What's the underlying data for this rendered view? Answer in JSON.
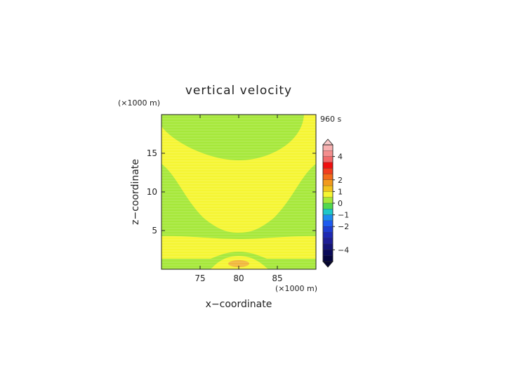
{
  "chart_data": {
    "type": "heatmap",
    "title": "vertical velocity",
    "time_label": "960 s",
    "xlabel": "x−coordinate",
    "ylabel": "z−coordinate",
    "x_unit": "(×1000 m)",
    "y_unit": "(×1000 m)",
    "xlim": [
      70,
      90
    ],
    "ylim": [
      0,
      20
    ],
    "x_ticks": [
      75,
      80,
      85
    ],
    "y_ticks": [
      5,
      10,
      15
    ],
    "x_tick_labels": [
      "75",
      "80",
      "85"
    ],
    "y_tick_labels": [
      "5",
      "10",
      "15"
    ],
    "regions": [
      {
        "level": "0 to 0.5",
        "color": "#f5f532",
        "description": "background (yellow)"
      },
      {
        "level": "-0.5 to 0",
        "color": "#a6e83a",
        "description": "upper bowl, flanks, low band (green)"
      },
      {
        "level": "0.5 to 1",
        "color": "#f0b83c",
        "description": "small cell near x=80, z=0.5"
      }
    ],
    "colorbar": {
      "tick_values": [
        4,
        2,
        1,
        0,
        -1,
        -2,
        -4
      ],
      "tick_labels": [
        "4",
        "2",
        "1",
        "0",
        "−1",
        "−2",
        "−4"
      ],
      "range": [
        -5,
        5
      ],
      "extend": "both",
      "colors_top_to_bottom": [
        "#f8b0b0",
        "#f38e8e",
        "#f16a6a",
        "#ef1010",
        "#f23d1f",
        "#f26a1a",
        "#f29a1e",
        "#f2c21e",
        "#f5f532",
        "#a6e83a",
        "#52d84e",
        "#1ec8c8",
        "#1e8cf0",
        "#1e5af0",
        "#1e3cd2",
        "#1e28b4",
        "#1e1e96",
        "#141478",
        "#0a0a5a",
        "#050540"
      ]
    }
  }
}
